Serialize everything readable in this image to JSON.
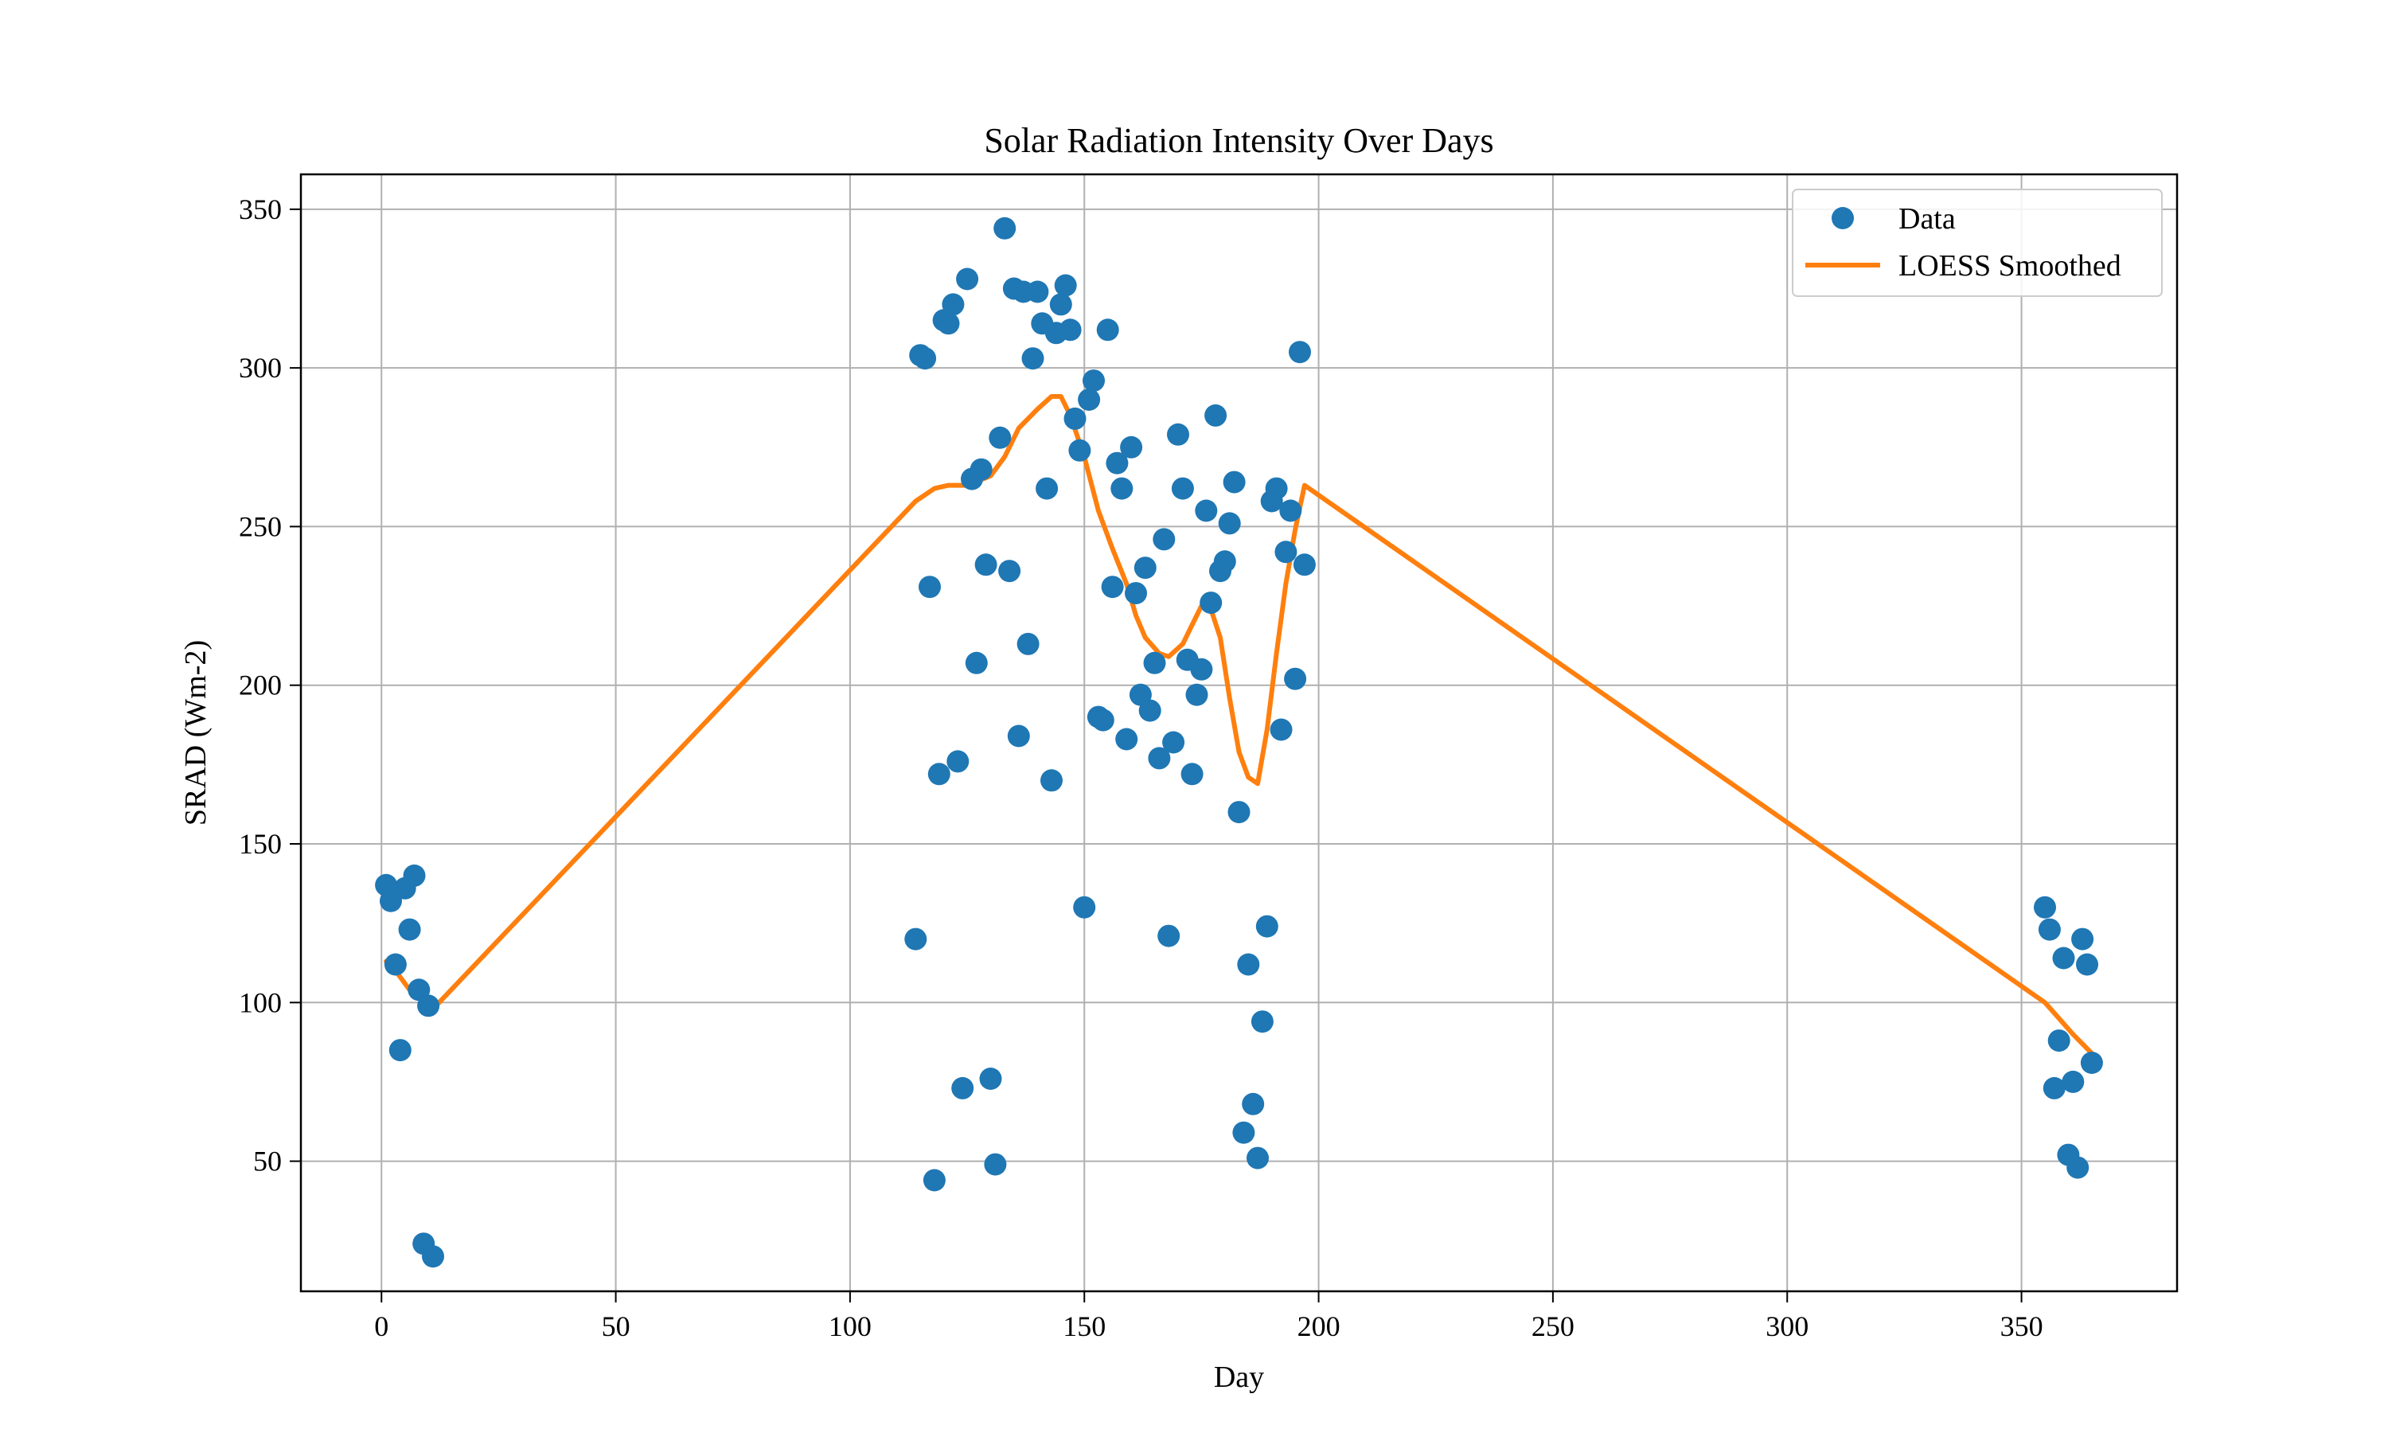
{
  "chart_data": {
    "type": "scatter",
    "title": "Solar Radiation Intensity Over Days",
    "xlabel": "Day",
    "ylabel": "SRAD (Wm-2)",
    "xlim": [
      -17.2,
      383.2
    ],
    "ylim": [
      9,
      361
    ],
    "xticks": [
      0,
      50,
      100,
      150,
      200,
      250,
      300,
      350
    ],
    "yticks": [
      50,
      100,
      150,
      200,
      250,
      300,
      350
    ],
    "grid": true,
    "legend_position": "top-right",
    "colors": {
      "data": "#1f77b4",
      "smooth": "#ff7f0e",
      "grid": "#b0b0b0"
    },
    "series": [
      {
        "name": "Data",
        "kind": "scatter",
        "points": [
          [
            1,
            137
          ],
          [
            2,
            132
          ],
          [
            3,
            112
          ],
          [
            4,
            85
          ],
          [
            5,
            136
          ],
          [
            6,
            123
          ],
          [
            7,
            140
          ],
          [
            8,
            104
          ],
          [
            9,
            24
          ],
          [
            10,
            99
          ],
          [
            11,
            20
          ],
          [
            114,
            120
          ],
          [
            115,
            304
          ],
          [
            116,
            303
          ],
          [
            117,
            231
          ],
          [
            118,
            44
          ],
          [
            119,
            172
          ],
          [
            120,
            315
          ],
          [
            121,
            314
          ],
          [
            122,
            320
          ],
          [
            123,
            176
          ],
          [
            124,
            73
          ],
          [
            125,
            328
          ],
          [
            126,
            265
          ],
          [
            127,
            207
          ],
          [
            128,
            268
          ],
          [
            129,
            238
          ],
          [
            130,
            76
          ],
          [
            131,
            49
          ],
          [
            132,
            278
          ],
          [
            133,
            344
          ],
          [
            134,
            236
          ],
          [
            135,
            325
          ],
          [
            136,
            184
          ],
          [
            137,
            324
          ],
          [
            138,
            213
          ],
          [
            139,
            303
          ],
          [
            140,
            324
          ],
          [
            141,
            314
          ],
          [
            142,
            262
          ],
          [
            143,
            170
          ],
          [
            144,
            311
          ],
          [
            145,
            320
          ],
          [
            146,
            326
          ],
          [
            147,
            312
          ],
          [
            148,
            284
          ],
          [
            149,
            274
          ],
          [
            150,
            130
          ],
          [
            151,
            290
          ],
          [
            152,
            296
          ],
          [
            153,
            190
          ],
          [
            154,
            189
          ],
          [
            155,
            312
          ],
          [
            156,
            231
          ],
          [
            157,
            270
          ],
          [
            158,
            262
          ],
          [
            159,
            183
          ],
          [
            160,
            275
          ],
          [
            161,
            229
          ],
          [
            162,
            197
          ],
          [
            163,
            237
          ],
          [
            164,
            192
          ],
          [
            165,
            207
          ],
          [
            166,
            177
          ],
          [
            167,
            246
          ],
          [
            168,
            121
          ],
          [
            169,
            182
          ],
          [
            170,
            279
          ],
          [
            171,
            262
          ],
          [
            172,
            208
          ],
          [
            173,
            172
          ],
          [
            174,
            197
          ],
          [
            175,
            205
          ],
          [
            176,
            255
          ],
          [
            177,
            226
          ],
          [
            178,
            285
          ],
          [
            179,
            236
          ],
          [
            180,
            239
          ],
          [
            181,
            251
          ],
          [
            182,
            264
          ],
          [
            183,
            160
          ],
          [
            184,
            59
          ],
          [
            185,
            112
          ],
          [
            186,
            68
          ],
          [
            187,
            51
          ],
          [
            188,
            94
          ],
          [
            189,
            124
          ],
          [
            190,
            258
          ],
          [
            191,
            262
          ],
          [
            192,
            186
          ],
          [
            193,
            242
          ],
          [
            194,
            255
          ],
          [
            195,
            202
          ],
          [
            196,
            305
          ],
          [
            197,
            238
          ],
          [
            355,
            130
          ],
          [
            356,
            123
          ],
          [
            357,
            73
          ],
          [
            358,
            88
          ],
          [
            359,
            114
          ],
          [
            360,
            52
          ],
          [
            361,
            75
          ],
          [
            362,
            48
          ],
          [
            363,
            120
          ],
          [
            364,
            112
          ],
          [
            365,
            81
          ]
        ]
      },
      {
        "name": "LOESS Smoothed",
        "kind": "line",
        "points": [
          [
            1,
            113
          ],
          [
            3,
            110
          ],
          [
            6,
            104
          ],
          [
            9,
            101
          ],
          [
            11,
            98
          ],
          [
            114,
            258
          ],
          [
            118,
            262
          ],
          [
            121,
            263
          ],
          [
            125,
            263
          ],
          [
            130,
            266
          ],
          [
            133,
            272
          ],
          [
            136,
            281
          ],
          [
            140,
            287
          ],
          [
            143,
            291
          ],
          [
            145,
            291
          ],
          [
            147,
            285
          ],
          [
            150,
            272
          ],
          [
            153,
            255
          ],
          [
            156,
            243
          ],
          [
            159,
            232
          ],
          [
            161,
            222
          ],
          [
            163,
            215
          ],
          [
            166,
            210
          ],
          [
            168,
            209
          ],
          [
            171,
            213
          ],
          [
            173,
            219
          ],
          [
            175,
            225
          ],
          [
            177,
            224
          ],
          [
            179,
            215
          ],
          [
            181,
            196
          ],
          [
            183,
            179
          ],
          [
            185,
            171
          ],
          [
            187,
            169
          ],
          [
            189,
            186
          ],
          [
            191,
            210
          ],
          [
            193,
            232
          ],
          [
            195,
            249
          ],
          [
            197,
            263
          ],
          [
            355,
            100
          ],
          [
            358,
            95
          ],
          [
            361,
            90
          ],
          [
            365,
            84
          ]
        ]
      }
    ]
  }
}
